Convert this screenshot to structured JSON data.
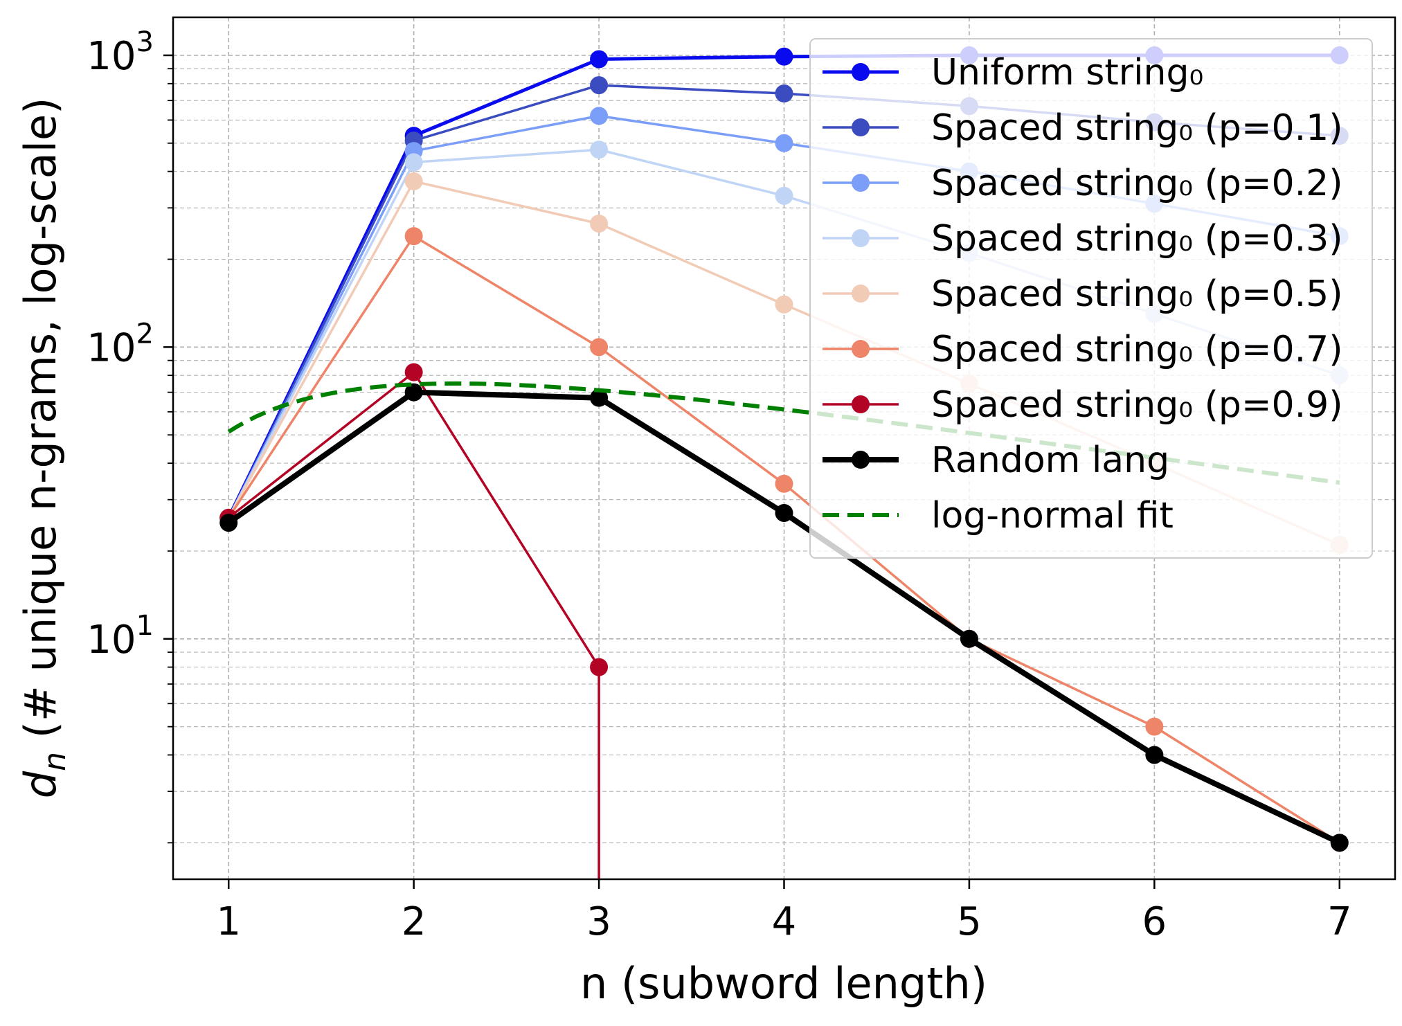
{
  "chart_data": {
    "type": "line",
    "xlabel": "n (subword length)",
    "ylabel_symbol": "d",
    "ylabel_subscript": "n",
    "ylabel_rest": " (# unique n-grams, log-scale)",
    "y_scale": "log",
    "xlim": [
      0.7,
      7.3
    ],
    "ylim": [
      1.5,
      1350
    ],
    "x_ticks": [
      1,
      2,
      3,
      4,
      5,
      6,
      7
    ],
    "y_ticks": [
      {
        "value": 10,
        "base": "10",
        "exp": "1"
      },
      {
        "value": 100,
        "base": "10",
        "exp": "2"
      },
      {
        "value": 1000,
        "base": "10",
        "exp": "3"
      }
    ],
    "grid": true,
    "legend_position": "top-right",
    "series": [
      {
        "name": "Uniform string₀",
        "color": "#0a0aef",
        "marker": true,
        "dashed": false,
        "x": [
          1,
          2,
          3,
          4,
          5,
          6,
          7
        ],
        "values": [
          26,
          530,
          970,
          990,
          1000,
          1000,
          1000
        ]
      },
      {
        "name": "Spaced string₀ (p=0.1)",
        "color": "#3b4cc0",
        "marker": true,
        "dashed": false,
        "x": [
          1,
          2,
          3,
          4,
          5,
          6,
          7
        ],
        "values": [
          26,
          510,
          790,
          740,
          670,
          590,
          530
        ]
      },
      {
        "name": "Spaced string₀ (p=0.2)",
        "color": "#7b9ff9",
        "marker": true,
        "dashed": false,
        "x": [
          1,
          2,
          3,
          4,
          5,
          6,
          7
        ],
        "values": [
          26,
          470,
          620,
          500,
          400,
          310,
          240
        ]
      },
      {
        "name": "Spaced string₀ (p=0.3)",
        "color": "#c0d4f5",
        "marker": true,
        "dashed": false,
        "x": [
          1,
          2,
          3,
          4,
          5,
          6,
          7
        ],
        "values": [
          26,
          430,
          475,
          330,
          210,
          130,
          80
        ]
      },
      {
        "name": "Spaced string₀ (p=0.5)",
        "color": "#f2cbb7",
        "marker": true,
        "dashed": false,
        "x": [
          1,
          2,
          3,
          4,
          5,
          6,
          7
        ],
        "values": [
          26,
          370,
          265,
          140,
          75,
          40,
          21
        ]
      },
      {
        "name": "Spaced string₀ (p=0.7)",
        "color": "#ee8468",
        "marker": true,
        "dashed": false,
        "x": [
          1,
          2,
          3,
          4,
          5,
          6,
          7
        ],
        "values": [
          26,
          240,
          100,
          34,
          10,
          5,
          2
        ]
      },
      {
        "name": "Spaced string₀ (p=0.9)",
        "color": "#b40426",
        "marker": true,
        "dashed": false,
        "x": [
          1,
          2,
          3
        ],
        "values": [
          26,
          82,
          8
        ],
        "drop_to_zero_after_last": true
      },
      {
        "name": "Random lang",
        "color": "#000000",
        "marker": true,
        "dashed": false,
        "bold": true,
        "x": [
          1,
          2,
          3,
          4,
          5,
          6,
          7
        ],
        "values": [
          25,
          70,
          67,
          27,
          10,
          4,
          2
        ]
      },
      {
        "name": "log-normal fit",
        "color": "#008000",
        "marker": false,
        "dashed": true,
        "fit": {
          "A": 75,
          "mu": 0.8,
          "sigma2": 0.84
        },
        "x_range": [
          1,
          7
        ]
      }
    ]
  }
}
